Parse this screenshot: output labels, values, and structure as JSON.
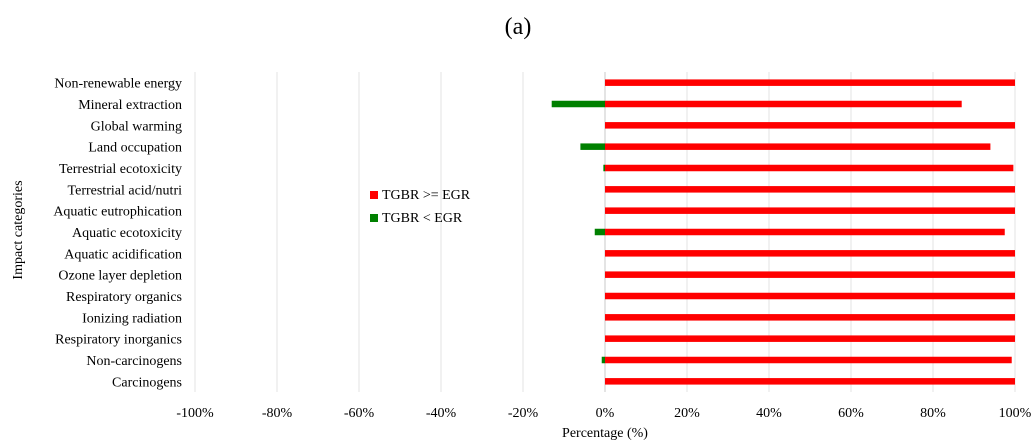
{
  "figure": {
    "label": "(a)"
  },
  "chart_data": {
    "type": "bar",
    "orientation": "horizontal",
    "stacked": true,
    "xlabel": "Percentage (%)",
    "ylabel": "Impact categories",
    "xlim": [
      -100,
      100
    ],
    "xticks": [
      -100,
      -80,
      -60,
      -40,
      -20,
      0,
      20,
      40,
      60,
      80,
      100
    ],
    "xtick_labels": [
      "-100%",
      "-80%",
      "-60%",
      "-40%",
      "-20%",
      "0%",
      "20%",
      "40%",
      "60%",
      "80%",
      "100%"
    ],
    "grid": "vertical",
    "legend_position": "center-left",
    "categories": [
      "Non-renewable energy",
      "Mineral extraction",
      "Global warming",
      "Land occupation",
      "Terrestrial ecotoxicity",
      "Terrestrial acid/nutri",
      "Aquatic eutrophication",
      "Aquatic ecotoxicity",
      "Aquatic acidification",
      "Ozone layer depletion",
      "Respiratory organics",
      "Ionizing radiation",
      "Respiratory inorganics",
      "Non-carcinogens",
      "Carcinogens"
    ],
    "series": [
      {
        "name": "TGBR >= EGR",
        "color": "#ff0000",
        "values": [
          100,
          87,
          100,
          94,
          99.6,
          100,
          100,
          97.5,
          100,
          100,
          100,
          100,
          100,
          99.2,
          100
        ]
      },
      {
        "name": "TGBR < EGR",
        "color": "#008000",
        "values": [
          0,
          -13,
          0,
          -6,
          -0.4,
          0,
          0,
          -2.5,
          0,
          0,
          0,
          0,
          0,
          -0.8,
          0
        ]
      }
    ]
  }
}
